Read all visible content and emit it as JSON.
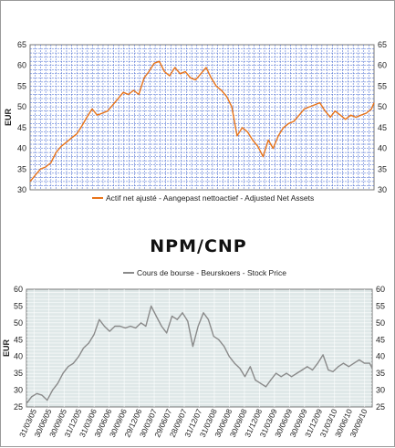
{
  "brand": "NPM/CNP",
  "colors": {
    "top_series": "#e8741a",
    "bottom_series": "#8a8a8a",
    "top_grid": "#3a5fcd",
    "bottom_bg": "#dfe8e8"
  },
  "chart_data": [
    {
      "type": "line",
      "title": "",
      "ylabel": "EUR",
      "ylim": [
        30,
        65
      ],
      "yticks": [
        30,
        35,
        40,
        45,
        50,
        55,
        60,
        65
      ],
      "right_axis": true,
      "grid": true,
      "legend": "bottom",
      "x_range": [
        "2005-03-31",
        "2010-10-15"
      ],
      "series": [
        {
          "name": "Actif net ajusté - Aangepast nettoactief - Adjusted Net Assets",
          "color": "#e8741a",
          "x": [
            "2005-03-31",
            "2005-04-30",
            "2005-05-31",
            "2005-06-30",
            "2005-07-31",
            "2005-08-31",
            "2005-09-30",
            "2005-10-31",
            "2005-11-30",
            "2005-12-31",
            "2006-01-31",
            "2006-02-28",
            "2006-03-31",
            "2006-04-30",
            "2006-05-31",
            "2006-06-30",
            "2006-07-31",
            "2006-08-31",
            "2006-09-30",
            "2006-10-31",
            "2006-11-30",
            "2006-12-31",
            "2007-01-31",
            "2007-02-28",
            "2007-03-31",
            "2007-04-30",
            "2007-05-31",
            "2007-06-30",
            "2007-07-31",
            "2007-08-31",
            "2007-09-30",
            "2007-10-31",
            "2007-11-30",
            "2007-12-31",
            "2008-01-31",
            "2008-02-29",
            "2008-03-31",
            "2008-04-30",
            "2008-05-31",
            "2008-06-30",
            "2008-07-31",
            "2008-08-31",
            "2008-09-30",
            "2008-10-31",
            "2008-11-30",
            "2008-12-31",
            "2009-01-31",
            "2009-02-28",
            "2009-03-31",
            "2009-04-30",
            "2009-05-31",
            "2009-06-30",
            "2009-07-31",
            "2009-08-31",
            "2009-09-30",
            "2009-10-31",
            "2009-11-30",
            "2009-12-31",
            "2010-01-31",
            "2010-02-28",
            "2010-03-31",
            "2010-04-30",
            "2010-05-31",
            "2010-06-30",
            "2010-07-31",
            "2010-08-31",
            "2010-09-30",
            "2010-10-15"
          ],
          "values": [
            32,
            33.5,
            35,
            35.5,
            36.5,
            39,
            40.5,
            41.5,
            42.5,
            43.5,
            45.5,
            47.5,
            49.5,
            48,
            48.5,
            49,
            50.5,
            52,
            53.5,
            53,
            54,
            53,
            57,
            58.5,
            60.5,
            61,
            58.5,
            57.5,
            59.5,
            58,
            58.5,
            57,
            56.5,
            58,
            59.5,
            57,
            55,
            54,
            52.5,
            50,
            43,
            45,
            44,
            42,
            40.5,
            38,
            42,
            40,
            43,
            45,
            46,
            46.5,
            48,
            49.5,
            50,
            50.5,
            51,
            49,
            47.5,
            49,
            48,
            47,
            48,
            47.5,
            48,
            48.5,
            49.5,
            51
          ]
        }
      ]
    },
    {
      "type": "line",
      "title": "",
      "ylabel": "EUR",
      "ylim": [
        25,
        60
      ],
      "yticks": [
        25,
        30,
        35,
        40,
        45,
        50,
        55,
        60
      ],
      "right_axis": true,
      "grid": true,
      "legend": "top",
      "xticks": [
        "31/03/05",
        "30/06/05",
        "30/09/05",
        "31/12/05",
        "31/03/06",
        "30/06/06",
        "30/09/06",
        "29/12/06",
        "30/03/07",
        "29/06/07",
        "28/09/07",
        "31/12/07",
        "31/03/08",
        "30/06/08",
        "30/09/08",
        "31/12/08",
        "31/03/09",
        "30/06/09",
        "30/09/09",
        "31/12/09",
        "31/03/10",
        "30/06/10",
        "30/09/10"
      ],
      "series": [
        {
          "name": "Cours de bourse - Beurskoers - Stock Price",
          "color": "#8a8a8a",
          "x": [
            "2005-03-31",
            "2005-04-30",
            "2005-05-31",
            "2005-06-30",
            "2005-07-31",
            "2005-08-31",
            "2005-09-30",
            "2005-10-31",
            "2005-11-30",
            "2005-12-31",
            "2006-01-31",
            "2006-02-28",
            "2006-03-31",
            "2006-04-30",
            "2006-05-31",
            "2006-06-30",
            "2006-07-31",
            "2006-08-31",
            "2006-09-30",
            "2006-10-31",
            "2006-11-30",
            "2006-12-31",
            "2007-01-31",
            "2007-02-28",
            "2007-03-31",
            "2007-04-30",
            "2007-05-31",
            "2007-06-30",
            "2007-07-31",
            "2007-08-31",
            "2007-09-30",
            "2007-10-31",
            "2007-11-30",
            "2007-12-31",
            "2008-01-31",
            "2008-02-29",
            "2008-03-31",
            "2008-04-30",
            "2008-05-31",
            "2008-06-30",
            "2008-07-31",
            "2008-08-31",
            "2008-09-30",
            "2008-10-31",
            "2008-11-30",
            "2008-12-31",
            "2009-01-31",
            "2009-02-28",
            "2009-03-31",
            "2009-04-30",
            "2009-05-31",
            "2009-06-30",
            "2009-07-31",
            "2009-08-31",
            "2009-09-30",
            "2009-10-31",
            "2009-11-30",
            "2009-12-31",
            "2010-01-31",
            "2010-02-28",
            "2010-03-31",
            "2010-04-30",
            "2010-05-31",
            "2010-06-30",
            "2010-07-31",
            "2010-08-31",
            "2010-09-30",
            "2010-10-15"
          ],
          "values": [
            26,
            28,
            29,
            28.5,
            27,
            30,
            32,
            35,
            37,
            38,
            40,
            42.5,
            44,
            46.5,
            51,
            49,
            47.5,
            49,
            49,
            48.5,
            49,
            48.5,
            50,
            49,
            55,
            52,
            49,
            47,
            52,
            51,
            53,
            50.5,
            43,
            49,
            53,
            51,
            46,
            45,
            43,
            40,
            38,
            36.5,
            34,
            37,
            33,
            32,
            31,
            33,
            35,
            34,
            35,
            34,
            35,
            36,
            37,
            36,
            38,
            40.5,
            36,
            35.5,
            37,
            38,
            37,
            38,
            39,
            38,
            38,
            36.5
          ]
        }
      ]
    }
  ]
}
